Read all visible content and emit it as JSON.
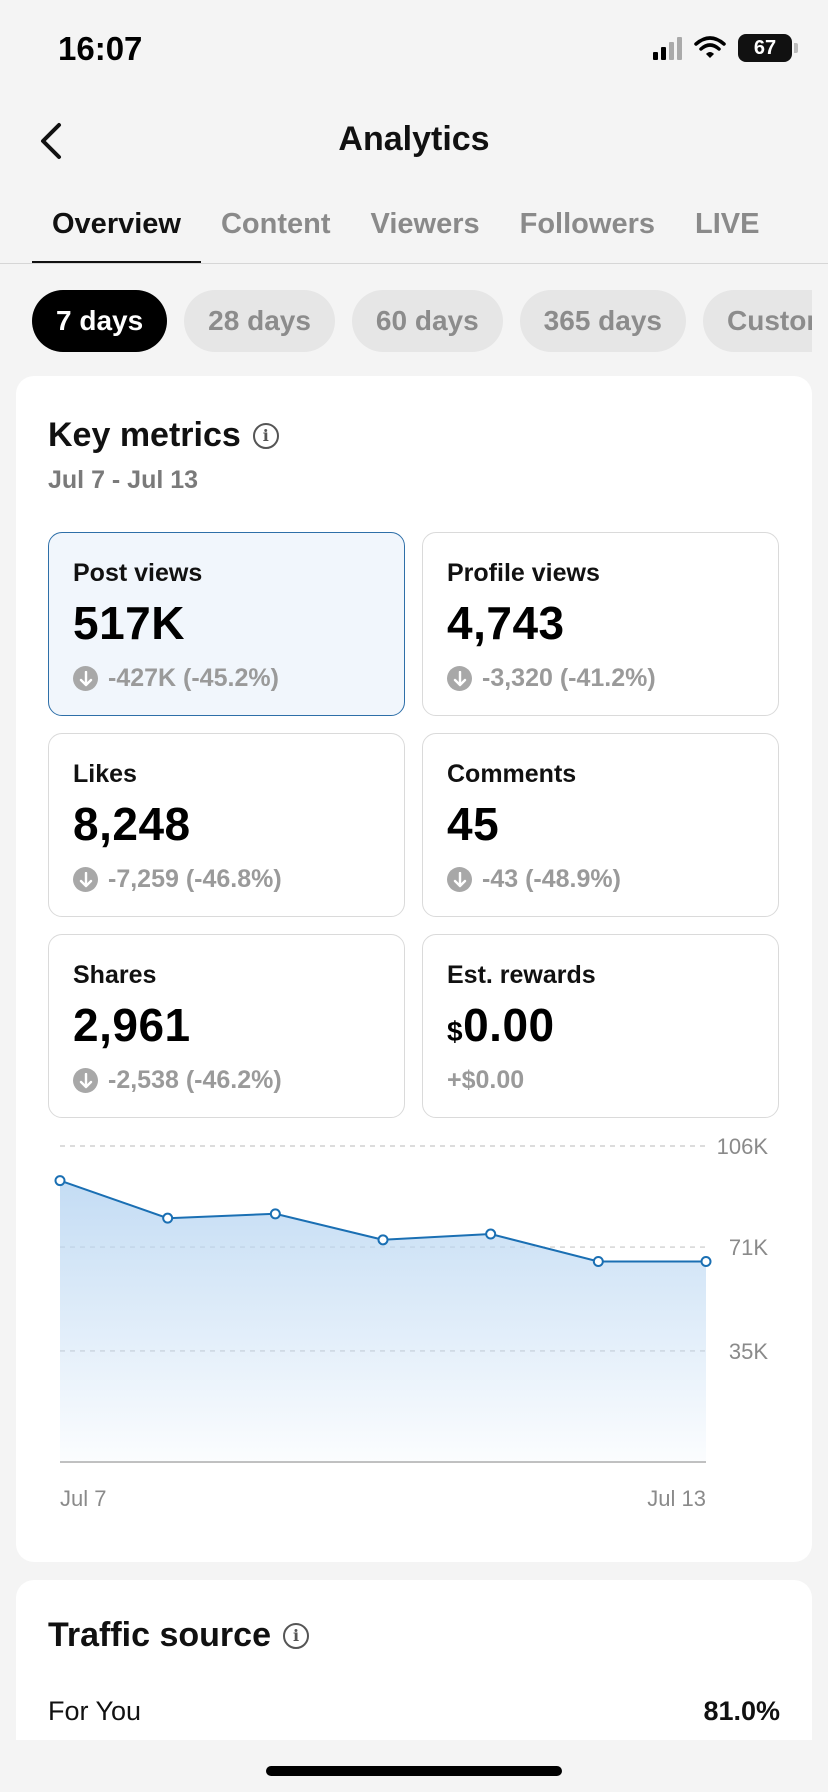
{
  "status_bar": {
    "time": "16:07",
    "battery": "67"
  },
  "header": {
    "title": "Analytics",
    "back_icon": "chevron-left-icon"
  },
  "tabs": [
    {
      "label": "Overview",
      "active": true
    },
    {
      "label": "Content",
      "active": false
    },
    {
      "label": "Viewers",
      "active": false
    },
    {
      "label": "Followers",
      "active": false
    },
    {
      "label": "LIVE",
      "active": false
    }
  ],
  "ranges": [
    {
      "label": "7 days",
      "active": true
    },
    {
      "label": "28 days",
      "active": false
    },
    {
      "label": "60 days",
      "active": false
    },
    {
      "label": "365 days",
      "active": false
    },
    {
      "label": "Custom",
      "active": false
    }
  ],
  "key_metrics": {
    "title": "Key metrics",
    "date_range": "Jul 7 - Jul 13",
    "metrics": [
      {
        "label": "Post views",
        "value": "517K",
        "delta": "-427K (-45.2%)",
        "down": true
      },
      {
        "label": "Profile views",
        "value": "4,743",
        "delta": "-3,320 (-41.2%)",
        "down": true
      },
      {
        "label": "Likes",
        "value": "8,248",
        "delta": "-7,259 (-46.8%)",
        "down": true
      },
      {
        "label": "Comments",
        "value": "45",
        "delta": "-43 (-48.9%)",
        "down": true
      },
      {
        "label": "Shares",
        "value": "2,961",
        "delta": "-2,538 (-46.2%)",
        "down": true
      },
      {
        "label": "Est. rewards",
        "currency": "$",
        "value": "0.00",
        "delta": "+$0.00",
        "down": false
      }
    ]
  },
  "chart_data": {
    "type": "area",
    "x": [
      "Jul 7",
      "Jul 8",
      "Jul 9",
      "Jul 10",
      "Jul 11",
      "Jul 12",
      "Jul 13"
    ],
    "x_tick_labels": [
      "Jul 7",
      "Jul 13"
    ],
    "values": [
      94000,
      81000,
      82500,
      73500,
      75500,
      66000,
      66000
    ],
    "y_ticks": [
      35000,
      71000,
      106000
    ],
    "y_tick_labels": [
      "35K",
      "71K",
      "106K"
    ],
    "ylim": [
      0,
      106000
    ],
    "grid": true,
    "color": "#1a6fb3"
  },
  "traffic_source": {
    "title": "Traffic source",
    "rows": [
      {
        "label": "For You",
        "value": "81.0%"
      }
    ]
  }
}
